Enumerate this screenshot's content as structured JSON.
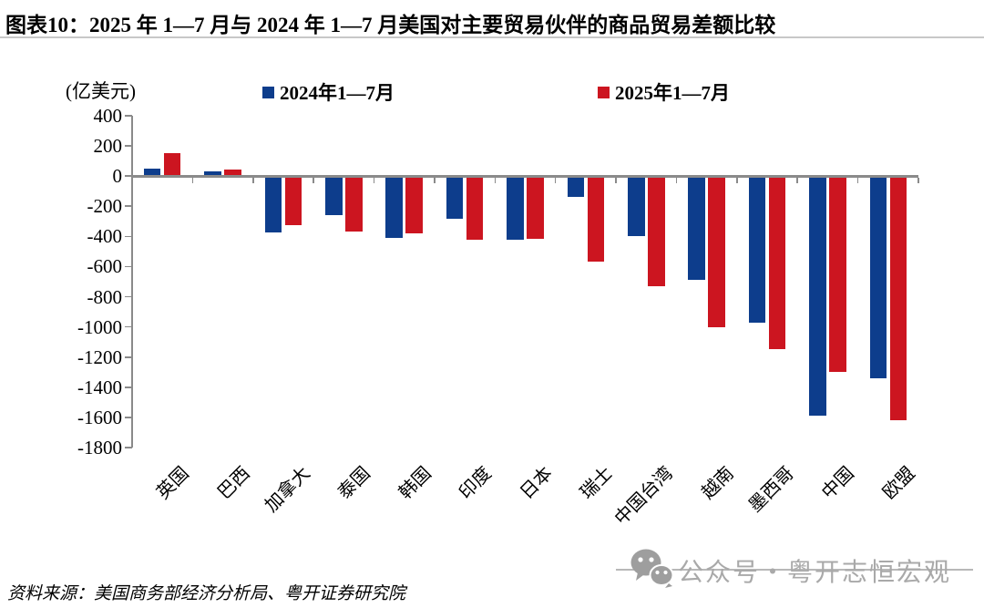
{
  "title": "图表10：2025 年 1—7 月与 2024 年 1—7 月美国对主要贸易伙伴的商品贸易差额比较",
  "source": "资料来源：美国商务部经济分析局、粤开证券研究院",
  "watermark": {
    "icon": "wechat-icon",
    "text": "公众号・粤开志恒宏观"
  },
  "colors": {
    "axis": "#8a8a8a",
    "divider": "#c8c8c8",
    "watermark_gray": "#a9a9a9"
  },
  "chart_data": {
    "type": "bar",
    "title": "",
    "unit_label": "(亿美元)",
    "xlabel": "",
    "ylabel": "亿美元",
    "ylim": [
      -1800,
      400
    ],
    "ytick_step": 200,
    "grid": false,
    "legend_position": "top",
    "categories": [
      "英国",
      "巴西",
      "加拿大",
      "泰国",
      "韩国",
      "印度",
      "日本",
      "瑞士",
      "中国台湾",
      "越南",
      "墨西哥",
      "中国",
      "欧盟"
    ],
    "series": [
      {
        "name": "2024年1—7月",
        "color": "#0d3d8c",
        "values": [
          50,
          30,
          -375,
          -260,
          -410,
          -285,
          -420,
          -140,
          -400,
          -685,
          -970,
          -1590,
          -1340
        ]
      },
      {
        "name": "2025年1—7月",
        "color": "#cc1520",
        "values": [
          155,
          45,
          -325,
          -370,
          -380,
          -425,
          -415,
          -570,
          -730,
          -1000,
          -1145,
          -1300,
          -1620
        ]
      }
    ]
  }
}
